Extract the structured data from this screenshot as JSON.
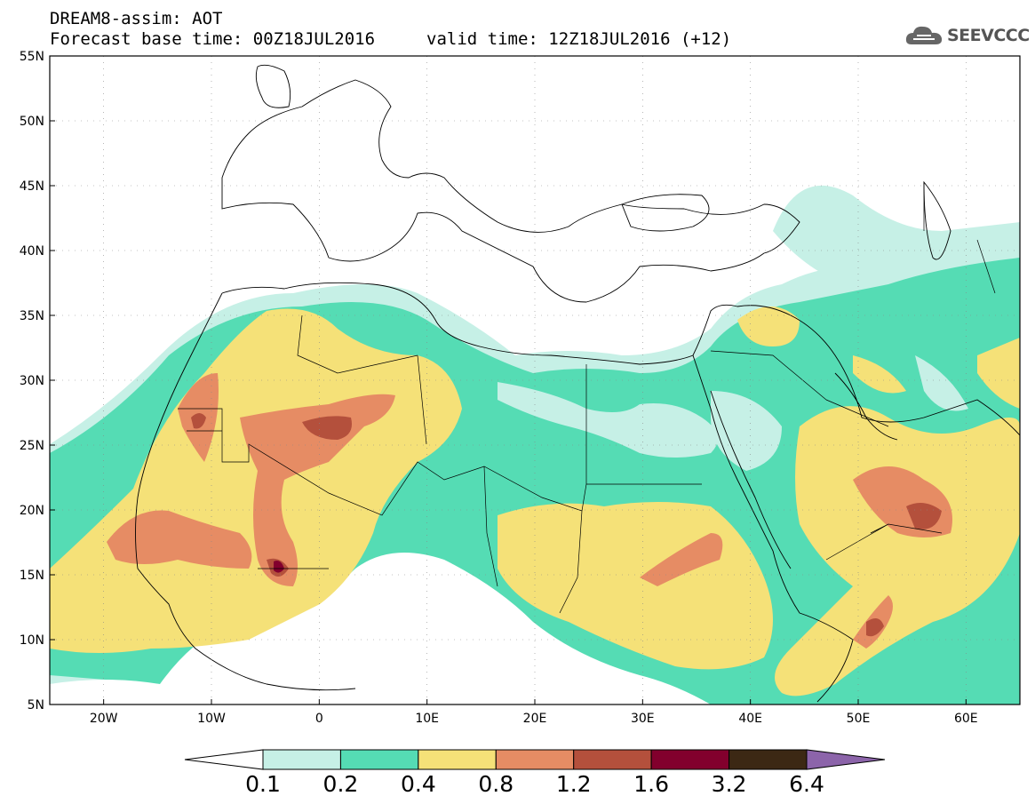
{
  "title": {
    "line1": "DREAM8-assim: AOT",
    "line2": "Forecast base time: 00Z18JUL2016",
    "valid": "valid time: 12Z18JUL2016 (+12)"
  },
  "logo": {
    "text": "SEEVCCC",
    "icon": "cloud-icon"
  },
  "map": {
    "lat_ticks": [
      "55N",
      "50N",
      "45N",
      "40N",
      "35N",
      "30N",
      "25N",
      "20N",
      "15N",
      "10N",
      "5N"
    ],
    "lon_ticks": [
      "20W",
      "10W",
      "0",
      "10E",
      "20E",
      "30E",
      "40E",
      "50E",
      "60E"
    ],
    "lon_range": [
      -25,
      65
    ],
    "lat_range": [
      5,
      55
    ]
  },
  "colorbar": {
    "labels": [
      "0.1",
      "0.2",
      "0.4",
      "0.8",
      "1.2",
      "1.6",
      "3.2",
      "6.4"
    ],
    "colors": [
      "#ffffff",
      "#c6f0e6",
      "#55dcb4",
      "#f5e178",
      "#e68c64",
      "#b4503c",
      "#82002d",
      "#3c2814",
      "#8c64aa"
    ]
  }
}
